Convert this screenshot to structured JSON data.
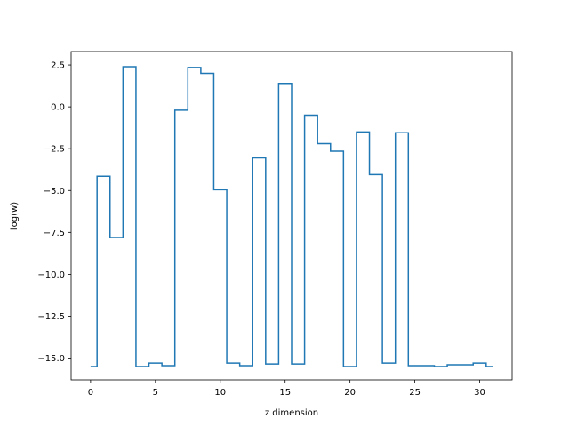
{
  "chart_data": {
    "type": "line",
    "drawstyle": "steps-mid",
    "title": "",
    "xlabel": "z dimension",
    "ylabel": "log(w)",
    "xlim": [
      -1.5,
      32.5
    ],
    "ylim": [
      -16.3,
      3.3
    ],
    "xticks": [
      0,
      5,
      10,
      15,
      20,
      25,
      30
    ],
    "yticks": [
      -15.0,
      -12.5,
      -10.0,
      -7.5,
      -5.0,
      -2.5,
      0.0,
      2.5
    ],
    "ytick_labels": [
      "−15.0",
      "−12.5",
      "−10.0",
      "−7.5",
      "−5.0",
      "−2.5",
      "0.0",
      "2.5"
    ],
    "grid": false,
    "series_color": "#1f77b4",
    "x": [
      0,
      1,
      2,
      3,
      4,
      5,
      6,
      7,
      8,
      9,
      10,
      11,
      12,
      13,
      14,
      15,
      16,
      17,
      18,
      19,
      20,
      21,
      22,
      23,
      24,
      25,
      26,
      27,
      28,
      29,
      30,
      31
    ],
    "y": [
      -15.5,
      -4.15,
      -7.8,
      2.4,
      -15.5,
      -15.3,
      -15.45,
      -0.2,
      2.35,
      2.0,
      -4.95,
      -15.3,
      -15.45,
      -3.05,
      -15.35,
      1.4,
      -15.35,
      -0.5,
      -2.2,
      -2.65,
      -15.5,
      -1.5,
      -4.05,
      -15.3,
      -1.55,
      -15.45,
      -15.45,
      -15.5,
      -15.4,
      -15.4,
      -15.3,
      -15.5
    ]
  }
}
